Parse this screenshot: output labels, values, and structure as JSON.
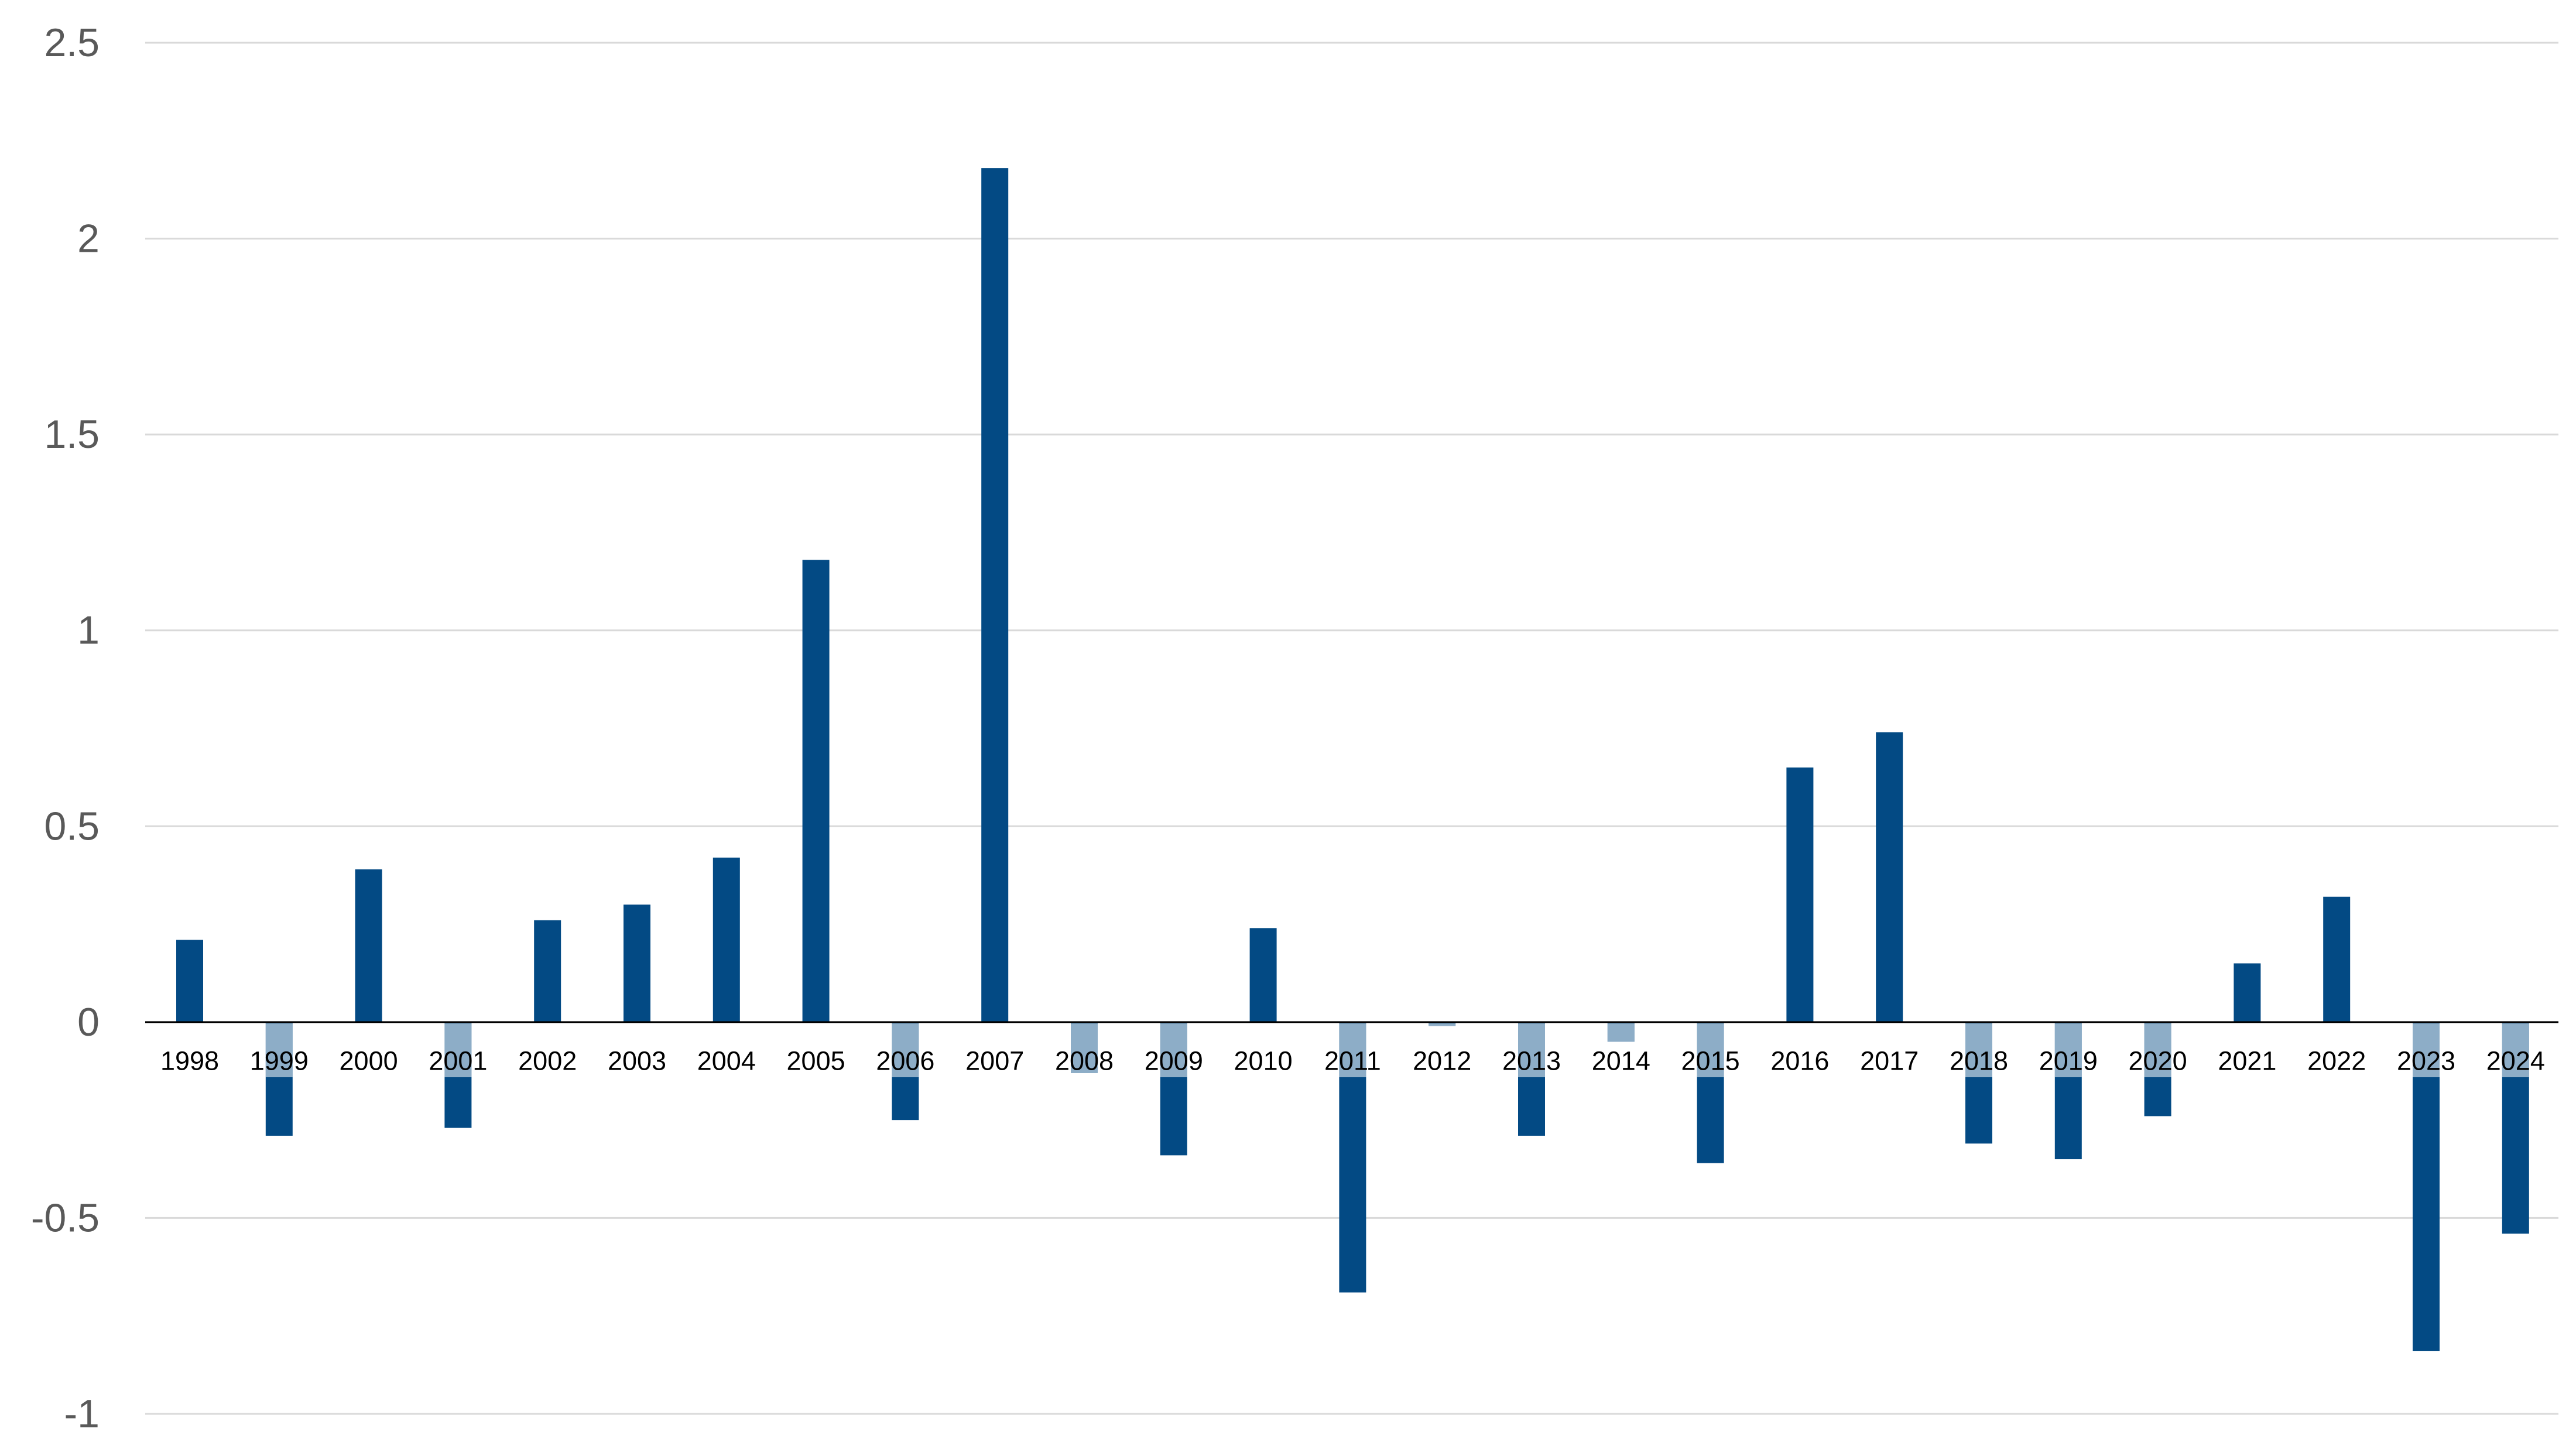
{
  "chart_data": {
    "type": "bar",
    "title": "",
    "xlabel": "",
    "ylabel": "",
    "categories": [
      "1998",
      "1999",
      "2000",
      "2001",
      "2002",
      "2003",
      "2004",
      "2005",
      "2006",
      "2007",
      "2008",
      "2009",
      "2010",
      "2011",
      "2012",
      "2013",
      "2014",
      "2015",
      "2016",
      "2017",
      "2018",
      "2019",
      "2020",
      "2021",
      "2022",
      "2023",
      "2024"
    ],
    "values": [
      0.21,
      -0.29,
      0.39,
      -0.27,
      0.26,
      0.3,
      0.42,
      1.18,
      -0.25,
      2.18,
      -0.13,
      -0.34,
      0.24,
      -0.69,
      -0.01,
      -0.29,
      -0.05,
      -0.36,
      0.65,
      0.74,
      -0.31,
      -0.35,
      -0.24,
      0.15,
      0.32,
      -0.84,
      -0.54
    ],
    "ylim": [
      -1,
      2.5
    ],
    "yticks": [
      {
        "value": 2.5,
        "label": "2.5"
      },
      {
        "value": 2,
        "label": "2"
      },
      {
        "value": 1.5,
        "label": "1.5"
      },
      {
        "value": 1,
        "label": "1"
      },
      {
        "value": 0.5,
        "label": "0.5"
      },
      {
        "value": 0,
        "label": "0"
      },
      {
        "value": -0.5,
        "label": "-0.5"
      },
      {
        "value": -1,
        "label": "-1"
      }
    ],
    "grid": true,
    "legend": "none",
    "colors": {
      "bar": "#034a84",
      "grid": "#d9d9d9",
      "zero_line": "#000000",
      "ytick_text": "#595959",
      "xtick_text": "#000000",
      "label_overlay": "#ffffff"
    }
  }
}
